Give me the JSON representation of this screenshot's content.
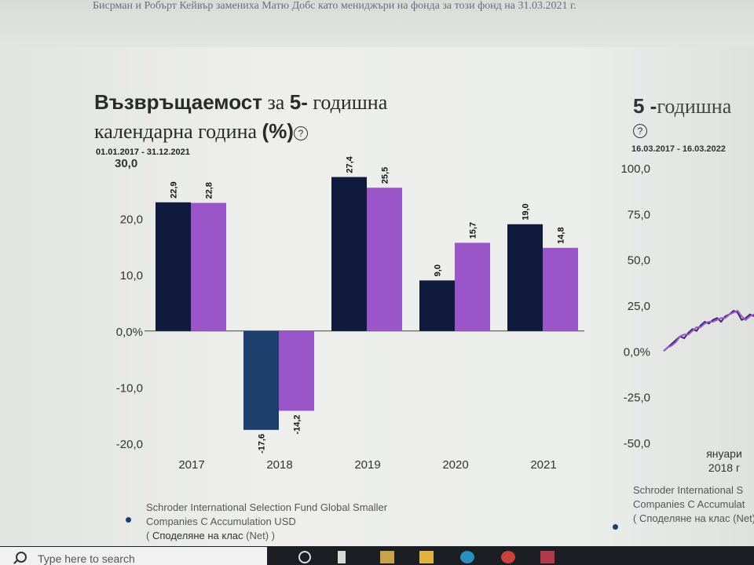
{
  "page": {
    "top_note": "Бисрман и Робърт Кейвър замениха Матю Добс като мениджъри на фонда за този фонд на 31.03.2021 г."
  },
  "chart1": {
    "title_part1": "Възвръщаемост",
    "title_part2": " за ",
    "title_part3": "5-",
    "title_part4": " годишна",
    "title_part5": "календарна година ",
    "title_part6": "(%)",
    "help": "?",
    "period": "01.01.2017 - 31.12.2021"
  },
  "chart2": {
    "title_part1": "5 -",
    "title_part2": "годишна",
    "help": "?",
    "period": "16.03.2017 - 16.03.2022",
    "x_label_line1": "януари",
    "x_label_line2": "2018 г"
  },
  "legend": {
    "line1": "Schroder International Selection Fund Global Smaller",
    "line2": "Companies C Accumulation USD",
    "line3_open": "( ",
    "line3_text": "Споделяне на клас ",
    "line3_net": "(Net)",
    "line3_close": " )"
  },
  "legend2": {
    "line1": "Schroder International S",
    "line2": "Companies C Accumulat",
    "line3": "( Споделяне на клас (Net)"
  },
  "taskbar": {
    "search_placeholder": "Type here to search"
  },
  "chart_data": [
    {
      "type": "bar",
      "categories": [
        "2017",
        "2018",
        "2019",
        "2020",
        "2021"
      ],
      "series": [
        {
          "name": "Schroder International Selection Fund Global Smaller Companies C Accumulation USD",
          "color": "#0f1a3c",
          "values": [
            22.9,
            -17.6,
            27.4,
            9.0,
            19.0
          ],
          "labels": [
            "22,9",
            "-17,6",
            "27,4",
            "9,0",
            "19,0"
          ]
        },
        {
          "color": "#9a55c8",
          "values": [
            22.8,
            -14.2,
            25.5,
            15.7,
            14.8
          ],
          "labels": [
            "22,8",
            "-14,2",
            "25,5",
            "15,7",
            "14,8"
          ]
        }
      ],
      "yticks": [
        "30,0",
        "20,0",
        "10,0",
        "0,0%",
        "-10,0",
        "-20,0"
      ],
      "ytick_values": [
        30,
        20,
        10,
        0,
        -10,
        -20
      ],
      "ylim": [
        -20,
        30
      ]
    },
    {
      "type": "line",
      "yticks": [
        "100,0",
        "75,0",
        "50,0",
        "25,0",
        "0,0%",
        "-25,0",
        "-50,0"
      ],
      "ytick_values": [
        100,
        75,
        50,
        25,
        0,
        -25,
        -50
      ],
      "ylim": [
        -50,
        100
      ],
      "series": [
        {
          "color": "#3a2a6e",
          "y": [
            0,
            2,
            4,
            6,
            8,
            7,
            10,
            12,
            11,
            14,
            16,
            15,
            17,
            18,
            16,
            19,
            20,
            22,
            21,
            17,
            18,
            20,
            19
          ]
        },
        {
          "color": "#9a55c8",
          "y": [
            0,
            2,
            3,
            5,
            8,
            9,
            9,
            11,
            13,
            13,
            15,
            16,
            16,
            17,
            18,
            18,
            20,
            21,
            22,
            19,
            17,
            19,
            20
          ]
        }
      ]
    }
  ]
}
